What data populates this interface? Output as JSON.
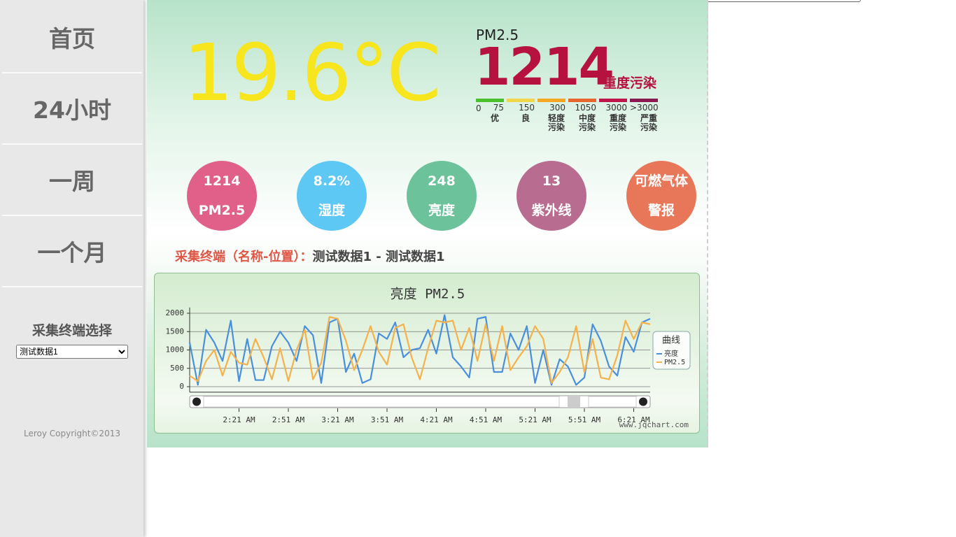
{
  "nav": {
    "items": [
      "首页",
      "24小时",
      "一周",
      "一个月"
    ],
    "selector_title": "采集终端选择",
    "selector_value": "测试数据1",
    "copyright": "Leroy Copyright©2013"
  },
  "temperature": "19.6°C",
  "pm25": {
    "label": "PM2.5",
    "value": "1214",
    "level": "重度污染",
    "scale": {
      "start": "0",
      "levels": [
        {
          "limit": "75",
          "name": "优"
        },
        {
          "limit": "150",
          "name": "良"
        },
        {
          "limit": "300",
          "name": "轻度污染"
        },
        {
          "limit": "1050",
          "name": "中度污染"
        },
        {
          "limit": "3000",
          "name": "重度污染"
        },
        {
          "limit": ">3000",
          "name": "严重污染"
        }
      ]
    }
  },
  "sensors": [
    {
      "value": "1214",
      "label": "PM2.5"
    },
    {
      "value": "8.2%",
      "label": "湿度"
    },
    {
      "value": "248",
      "label": "亮度"
    },
    {
      "value": "13",
      "label": "紫外线"
    },
    {
      "value": "可燃气体",
      "label": "警报"
    }
  ],
  "terminal": {
    "label": "采集终端（名称-位置）：",
    "value": "测试数据1 - 测试数据1"
  },
  "chart_data": {
    "type": "line",
    "title": "亮度 PM2.5",
    "categories": [
      null,
      null,
      null,
      null,
      null,
      null,
      "2:21 AM",
      null,
      null,
      null,
      null,
      null,
      "2:51 AM",
      null,
      null,
      null,
      null,
      null,
      "3:21 AM",
      null,
      null,
      null,
      null,
      null,
      "3:51 AM",
      null,
      null,
      null,
      null,
      null,
      "4:21 AM",
      null,
      null,
      null,
      null,
      null,
      "4:51 AM",
      null,
      null,
      null,
      null,
      null,
      "5:21 AM",
      null,
      null,
      null,
      null,
      null,
      "5:51 AM",
      null,
      null,
      null,
      null,
      null,
      "6:21 AM",
      null,
      null
    ],
    "series": [
      {
        "name": "亮度",
        "color": "#4a8fdc",
        "values": [
          1200,
          50,
          1550,
          1200,
          700,
          1800,
          150,
          1300,
          180,
          180,
          1100,
          1500,
          1200,
          700,
          1650,
          1400,
          100,
          1750,
          1850,
          400,
          900,
          100,
          200,
          1450,
          1300,
          1750,
          800,
          1000,
          1050,
          1550,
          900,
          1950,
          800,
          550,
          250,
          1850,
          1900,
          400,
          400,
          1450,
          1000,
          1650,
          100,
          1000,
          50,
          750,
          550,
          50,
          250,
          1700,
          1250,
          550,
          300,
          1350,
          950,
          1750,
          1850
        ]
      },
      {
        "name": "PM2.5",
        "color": "#f4b14c",
        "values": [
          300,
          150,
          700,
          1000,
          300,
          950,
          650,
          600,
          1300,
          800,
          200,
          1050,
          150,
          1000,
          1550,
          200,
          650,
          1900,
          1850,
          1250,
          450,
          1000,
          1650,
          950,
          600,
          1600,
          1700,
          800,
          200,
          1050,
          1800,
          1750,
          1800,
          1000,
          1600,
          700,
          1700,
          700,
          1650,
          450,
          800,
          1100,
          1650,
          1300,
          100,
          400,
          800,
          1650,
          400,
          1300,
          250,
          200,
          850,
          1800,
          1300,
          1750,
          1700
        ]
      }
    ],
    "ylim": [
      -150,
      2100
    ],
    "yticks": [
      0,
      500,
      1000,
      1500,
      2000
    ],
    "grid": true,
    "legend_title": "曲线",
    "legend": "right",
    "watermark": "www.jqchart.com"
  }
}
